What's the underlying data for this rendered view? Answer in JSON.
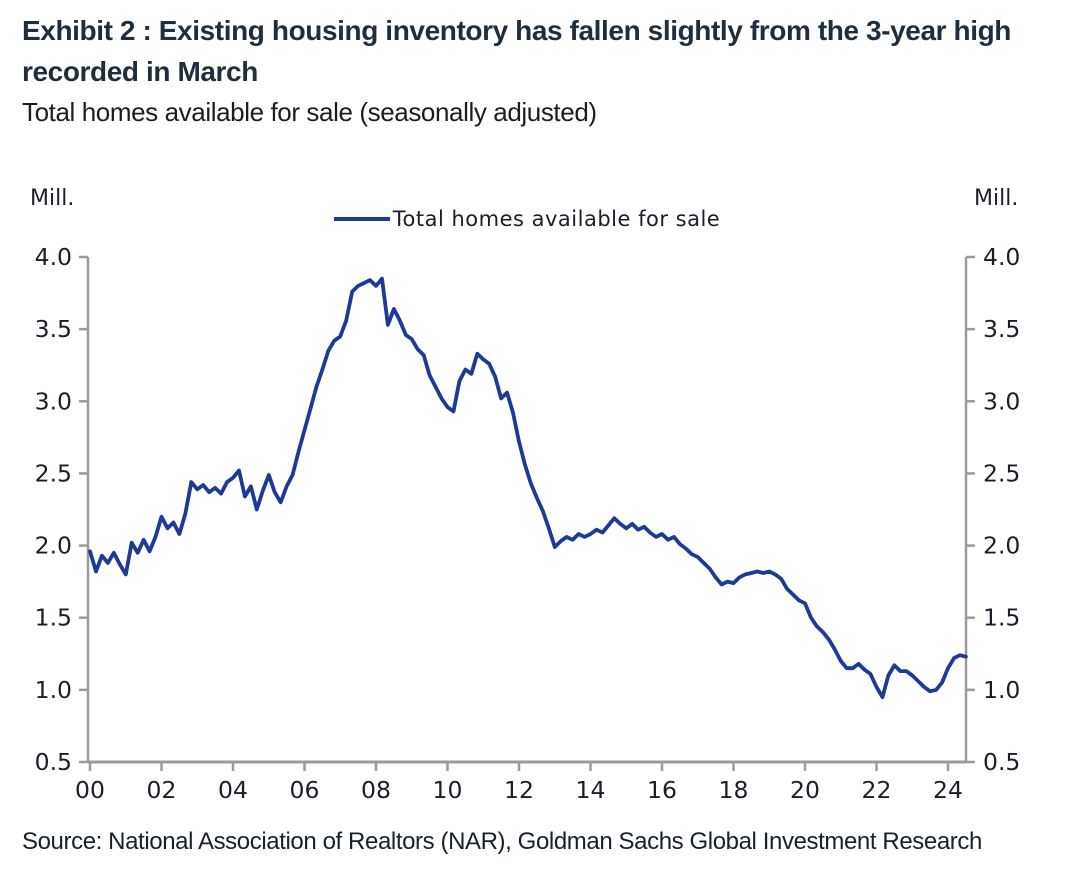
{
  "header": {
    "title": "Exhibit 2 : Existing housing inventory has fallen slightly from the 3-year high recorded in March",
    "subtitle": "Total homes available for sale (seasonally adjusted)"
  },
  "footer": {
    "source": "Source: National Association of Realtors (NAR), Goldman Sachs Global Investment Research"
  },
  "chart_data": {
    "type": "line",
    "title": "",
    "unit_label_left": "Mill.",
    "unit_label_right": "Mill.",
    "legend_position": "top-center",
    "grid": false,
    "line_color": "#1e3a96",
    "axis_color": "#9b9b9b",
    "tick_label_color": "#1b1e28",
    "legend": [
      {
        "label": "Total homes available for sale",
        "color": "#1e3a96"
      }
    ],
    "ylabel": "Mill.",
    "xlabel": "",
    "ylim": [
      0.5,
      4.0
    ],
    "xlim_years": [
      2000,
      2024.55
    ],
    "y_ticks": [
      4.0,
      3.5,
      3.0,
      2.5,
      2.0,
      1.5,
      1.0,
      0.5
    ],
    "y_tick_labels": [
      "4.0",
      "3.5",
      "3.0",
      "2.5",
      "2.0",
      "1.5",
      "1.0",
      "0.5"
    ],
    "x_tick_years": [
      2000,
      2002,
      2004,
      2006,
      2008,
      2010,
      2012,
      2014,
      2016,
      2018,
      2020,
      2022,
      2024
    ],
    "x_tick_labels": [
      "00",
      "02",
      "04",
      "06",
      "08",
      "10",
      "12",
      "14",
      "16",
      "18",
      "20",
      "22",
      "24"
    ],
    "x_start": 2000.0,
    "x_step_years": 0.1666667,
    "series": [
      {
        "name": "Total homes available for sale",
        "values": [
          1.96,
          1.82,
          1.93,
          1.88,
          1.95,
          1.87,
          1.8,
          2.02,
          1.95,
          2.04,
          1.96,
          2.06,
          2.2,
          2.12,
          2.16,
          2.08,
          2.22,
          2.44,
          2.39,
          2.42,
          2.37,
          2.4,
          2.36,
          2.44,
          2.47,
          2.52,
          2.34,
          2.41,
          2.25,
          2.38,
          2.49,
          2.37,
          2.3,
          2.41,
          2.49,
          2.65,
          2.8,
          2.95,
          3.1,
          3.22,
          3.35,
          3.42,
          3.45,
          3.56,
          3.76,
          3.8,
          3.82,
          3.84,
          3.8,
          3.85,
          3.53,
          3.64,
          3.56,
          3.46,
          3.43,
          3.36,
          3.32,
          3.18,
          3.1,
          3.02,
          2.96,
          2.93,
          3.14,
          3.22,
          3.19,
          3.33,
          3.29,
          3.26,
          3.17,
          3.02,
          3.06,
          2.92,
          2.72,
          2.56,
          2.43,
          2.33,
          2.24,
          2.12,
          1.99,
          2.03,
          2.06,
          2.04,
          2.08,
          2.06,
          2.08,
          2.11,
          2.09,
          2.14,
          2.19,
          2.15,
          2.12,
          2.15,
          2.11,
          2.13,
          2.09,
          2.06,
          2.08,
          2.04,
          2.06,
          2.01,
          1.98,
          1.94,
          1.92,
          1.88,
          1.84,
          1.78,
          1.73,
          1.75,
          1.74,
          1.78,
          1.8,
          1.81,
          1.82,
          1.81,
          1.82,
          1.8,
          1.77,
          1.7,
          1.66,
          1.62,
          1.6,
          1.5,
          1.44,
          1.4,
          1.35,
          1.28,
          1.2,
          1.15,
          1.15,
          1.18,
          1.14,
          1.11,
          1.02,
          0.95,
          1.1,
          1.17,
          1.13,
          1.13,
          1.1,
          1.06,
          1.02,
          0.99,
          1.0,
          1.05,
          1.15,
          1.22,
          1.24,
          1.23
        ]
      }
    ]
  }
}
